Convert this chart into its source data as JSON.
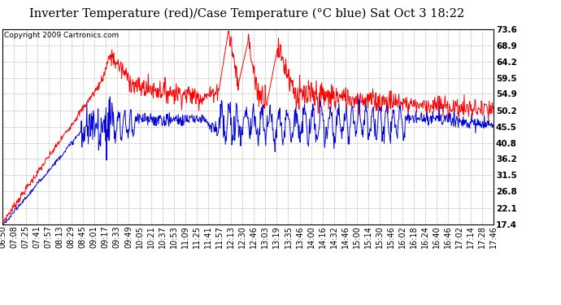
{
  "title": "Inverter Temperature (red)/Case Temperature (°C blue) Sat Oct 3 18:22",
  "copyright": "Copyright 2009 Cartronics.com",
  "ymin": 17.4,
  "ymax": 73.6,
  "yticks": [
    73.6,
    68.9,
    64.2,
    59.5,
    54.9,
    50.2,
    45.5,
    40.8,
    36.2,
    31.5,
    26.8,
    22.1,
    17.4
  ],
  "red_color": "#ff0000",
  "blue_color": "#0000dd",
  "background_color": "#ffffff",
  "grid_color": "#aaaaaa",
  "title_fontsize": 10.5,
  "copyright_fontsize": 6.5,
  "tick_fontsize": 7,
  "xtick_labels": [
    "06:50",
    "07:08",
    "07:25",
    "07:41",
    "07:57",
    "08:13",
    "08:29",
    "08:45",
    "09:01",
    "09:17",
    "09:33",
    "09:49",
    "10:05",
    "10:21",
    "10:37",
    "10:53",
    "11:09",
    "11:25",
    "11:41",
    "11:57",
    "12:13",
    "12:30",
    "12:46",
    "13:03",
    "13:19",
    "13:35",
    "13:46",
    "14:00",
    "14:16",
    "14:32",
    "14:46",
    "15:00",
    "15:14",
    "15:30",
    "15:46",
    "16:02",
    "16:18",
    "16:24",
    "16:40",
    "16:46",
    "17:02",
    "17:14",
    "17:28",
    "17:46"
  ],
  "n_points": 1000
}
